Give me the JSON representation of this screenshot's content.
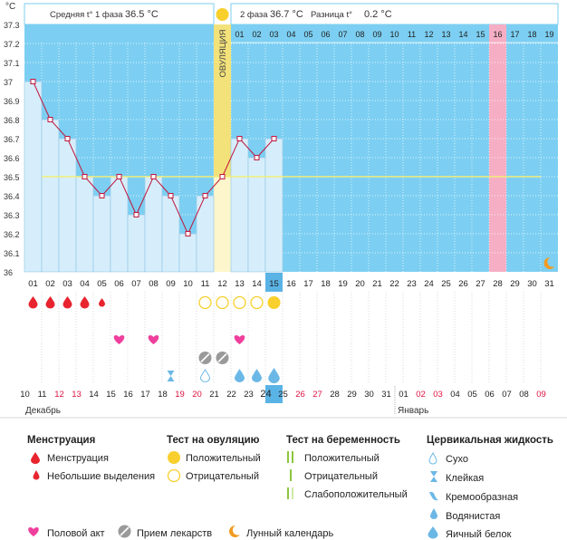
{
  "chart_data": {
    "type": "line",
    "y_unit": "°C",
    "ylim": [
      36.0,
      37.3
    ],
    "y_ticks": [
      "36",
      "36.1",
      "36.2",
      "36.3",
      "36.4",
      "36.5",
      "36.6",
      "36.7",
      "36.8",
      "36.9",
      "37",
      "37.1",
      "37.2",
      "37.3"
    ],
    "cycle_days": [
      "01",
      "02",
      "03",
      "04",
      "05",
      "06",
      "07",
      "08",
      "09",
      "10",
      "11",
      "12",
      "13",
      "14",
      "15",
      "16",
      "17",
      "18",
      "19",
      "20",
      "21",
      "22",
      "23",
      "24",
      "25",
      "26",
      "27",
      "28",
      "29",
      "30",
      "31"
    ],
    "phase2_days": [
      "01",
      "02",
      "03",
      "04",
      "05",
      "06",
      "07",
      "08",
      "09",
      "10",
      "11",
      "12",
      "13",
      "14",
      "15",
      "16",
      "17",
      "18",
      "19"
    ],
    "temperatures": [
      37.0,
      36.8,
      36.7,
      36.5,
      36.4,
      36.5,
      36.3,
      36.5,
      36.4,
      36.2,
      36.4,
      36.5,
      36.7,
      36.6,
      36.7
    ],
    "coverline": 36.5,
    "ovulation_day": 12,
    "ovulation_label": "ОВУЛЯЦИЯ",
    "today_day": 15,
    "highlight_day": 28,
    "phase1_avg_label": "Средняя t° 1 фаза",
    "phase1_avg_value": "36.5 °C",
    "phase2_label": "2 фаза",
    "phase2_value": "36.7 °C",
    "diff_label": "Разница t°",
    "diff_value": "0.2 °C",
    "menstruation": [
      2,
      2,
      2,
      2,
      1
    ],
    "ovulation_tests": {
      "positive": [
        15
      ],
      "negative": [
        11,
        12,
        13,
        14
      ]
    },
    "intercourse_days": [
      6,
      8,
      13
    ],
    "medication_days": [
      11,
      12
    ],
    "cervical_fluid": {
      "9": "sticky",
      "11": "dry",
      "13": "watery",
      "14": "watery",
      "15": "eggwhite"
    },
    "moon_day": 31,
    "calendar_dates": [
      "10",
      "11",
      "12",
      "13",
      "14",
      "15",
      "16",
      "17",
      "18",
      "19",
      "20",
      "21",
      "22",
      "23",
      "24",
      "25",
      "26",
      "27",
      "28",
      "29",
      "30",
      "31",
      "01",
      "02",
      "03",
      "04",
      "05",
      "06",
      "07",
      "08",
      "09"
    ],
    "weekend_dates": [
      12,
      13,
      19,
      20,
      26,
      27,
      23,
      24,
      25,
      30,
      31
    ],
    "month_start": "Декабрь",
    "month_next": "Январь",
    "colors": {
      "sky": "#7ccff2",
      "bar": "#d6eefb",
      "bar_stroke": "#8ec3e6",
      "line": "#c0143c",
      "coverline": "#f2ed7a",
      "ovulation": "#f3e27a",
      "pink_day": "#f6aec4",
      "today": "#5ab3e5",
      "weekend": "#e0113f",
      "blood": "#e8242f",
      "heart": "#ef3f9c",
      "sun": "#f8cf2c",
      "drop": "#6bb8e6",
      "pill": "#9a9a9a",
      "moon": "#f29b22"
    }
  },
  "legend": {
    "menstruation": {
      "title": "Менструация",
      "items": [
        "Менструация",
        "Небольшие выделения"
      ]
    },
    "ovulation_test": {
      "title": "Тест на овуляцию",
      "items": [
        "Положительный",
        "Отрицательный"
      ]
    },
    "pregnancy_test": {
      "title": "Тест на беременность",
      "items": [
        "Положительный",
        "Отрицательный",
        "Слабоположительный"
      ]
    },
    "cervical": {
      "title": "Цервикальная жидкость",
      "items": [
        "Сухо",
        "Клейкая",
        "Кремообразная",
        "Водянистая",
        "Яичный белок"
      ]
    },
    "bottom": [
      "Половой акт",
      "Прием лекарств",
      "Лунный календарь"
    ]
  }
}
